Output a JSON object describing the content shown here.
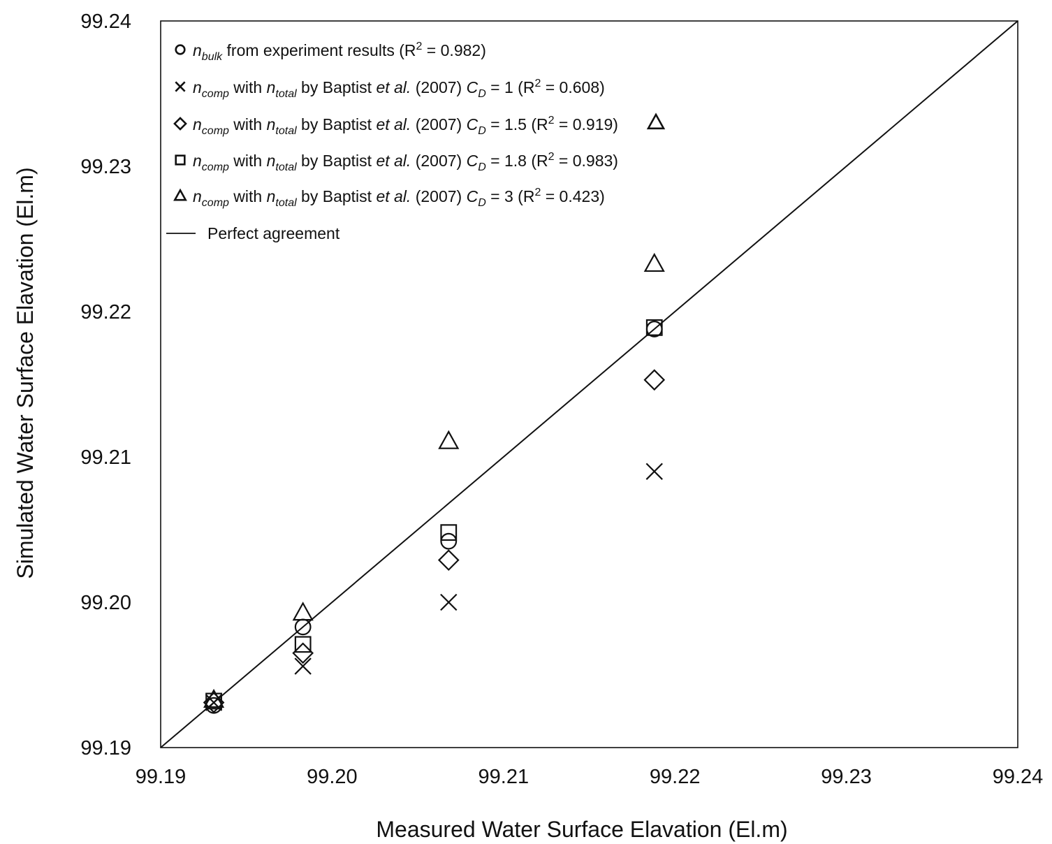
{
  "chart_data": {
    "type": "scatter",
    "title": "",
    "xlabel": "Measured Water Surface Elavation (El.m)",
    "ylabel": "Simulated Water Surface Elavation (El.m)",
    "xlim": [
      99.19,
      99.24
    ],
    "ylim": [
      99.19,
      99.24
    ],
    "x_ticks": [
      "99.19",
      "99.20",
      "99.21",
      "99.22",
      "99.23",
      "99.24"
    ],
    "y_ticks": [
      "99.19",
      "99.20",
      "99.21",
      "99.22",
      "99.23",
      "99.24"
    ],
    "grid": false,
    "legend_position": "top-left",
    "reference_line": {
      "name": "Perfect agreement",
      "from": [
        99.19,
        99.19
      ],
      "to": [
        99.24,
        99.24
      ]
    },
    "series": [
      {
        "marker": "circle",
        "legend": {
          "n": "n",
          "sub": "bulk",
          "text": " from experiment results (R",
          "sup": "2",
          "tail": " = 0.982)"
        },
        "x": [
          99.1931,
          99.1983,
          99.2068,
          99.2188
        ],
        "y": [
          99.1929,
          99.1983,
          99.2042,
          99.2188
        ]
      },
      {
        "marker": "x",
        "legend": {
          "n": "n",
          "sub": "comp",
          "mid1": " with ",
          "n2": "n",
          "sub2": "total",
          "mid2": " by Baptist ",
          "etal": "et al.",
          "year": " (2007) ",
          "cd": "C",
          "cdsub": "D",
          "cdval": " = 1 (R",
          "sup": "2",
          "tail": " = 0.608)"
        },
        "x": [
          99.1931,
          99.1983,
          99.2068,
          99.2188
        ],
        "y": [
          99.1931,
          99.1956,
          99.2,
          99.209
        ]
      },
      {
        "marker": "diamond",
        "legend": {
          "n": "n",
          "sub": "comp",
          "mid1": " with ",
          "n2": "n",
          "sub2": "total",
          "mid2": " by Baptist ",
          "etal": "et al.",
          "year": " (2007) ",
          "cd": "C",
          "cdsub": "D",
          "cdval": " = 1.5 (R",
          "sup": "2",
          "tail": " = 0.919)"
        },
        "x": [
          99.1931,
          99.1983,
          99.2068,
          99.2188
        ],
        "y": [
          99.1931,
          99.1965,
          99.2029,
          99.2153
        ]
      },
      {
        "marker": "square",
        "legend": {
          "n": "n",
          "sub": "comp",
          "mid1": " with ",
          "n2": "n",
          "sub2": "total",
          "mid2": " by Baptist ",
          "etal": "et al.",
          "year": " (2007) ",
          "cd": "C",
          "cdsub": "D",
          "cdval": " = 1.8 (R",
          "sup": "2",
          "tail": " = 0.983)"
        },
        "x": [
          99.1931,
          99.1983,
          99.2068,
          99.2188
        ],
        "y": [
          99.1932,
          99.1971,
          99.2048,
          99.2189
        ]
      },
      {
        "marker": "triangle",
        "legend": {
          "n": "n",
          "sub": "comp",
          "mid1": " with ",
          "n2": "n",
          "sub2": "total",
          "mid2": " by Baptist ",
          "etal": "et al.",
          "year": " (2007) ",
          "cd": "C",
          "cdsub": "D",
          "cdval": " = 3 (R",
          "sup": "2",
          "tail": " = 0.423)"
        },
        "x": [
          99.1931,
          99.1983,
          99.2068,
          99.2188
        ],
        "y": [
          99.1933,
          99.1993,
          99.2111,
          99.2233
        ]
      }
    ]
  }
}
